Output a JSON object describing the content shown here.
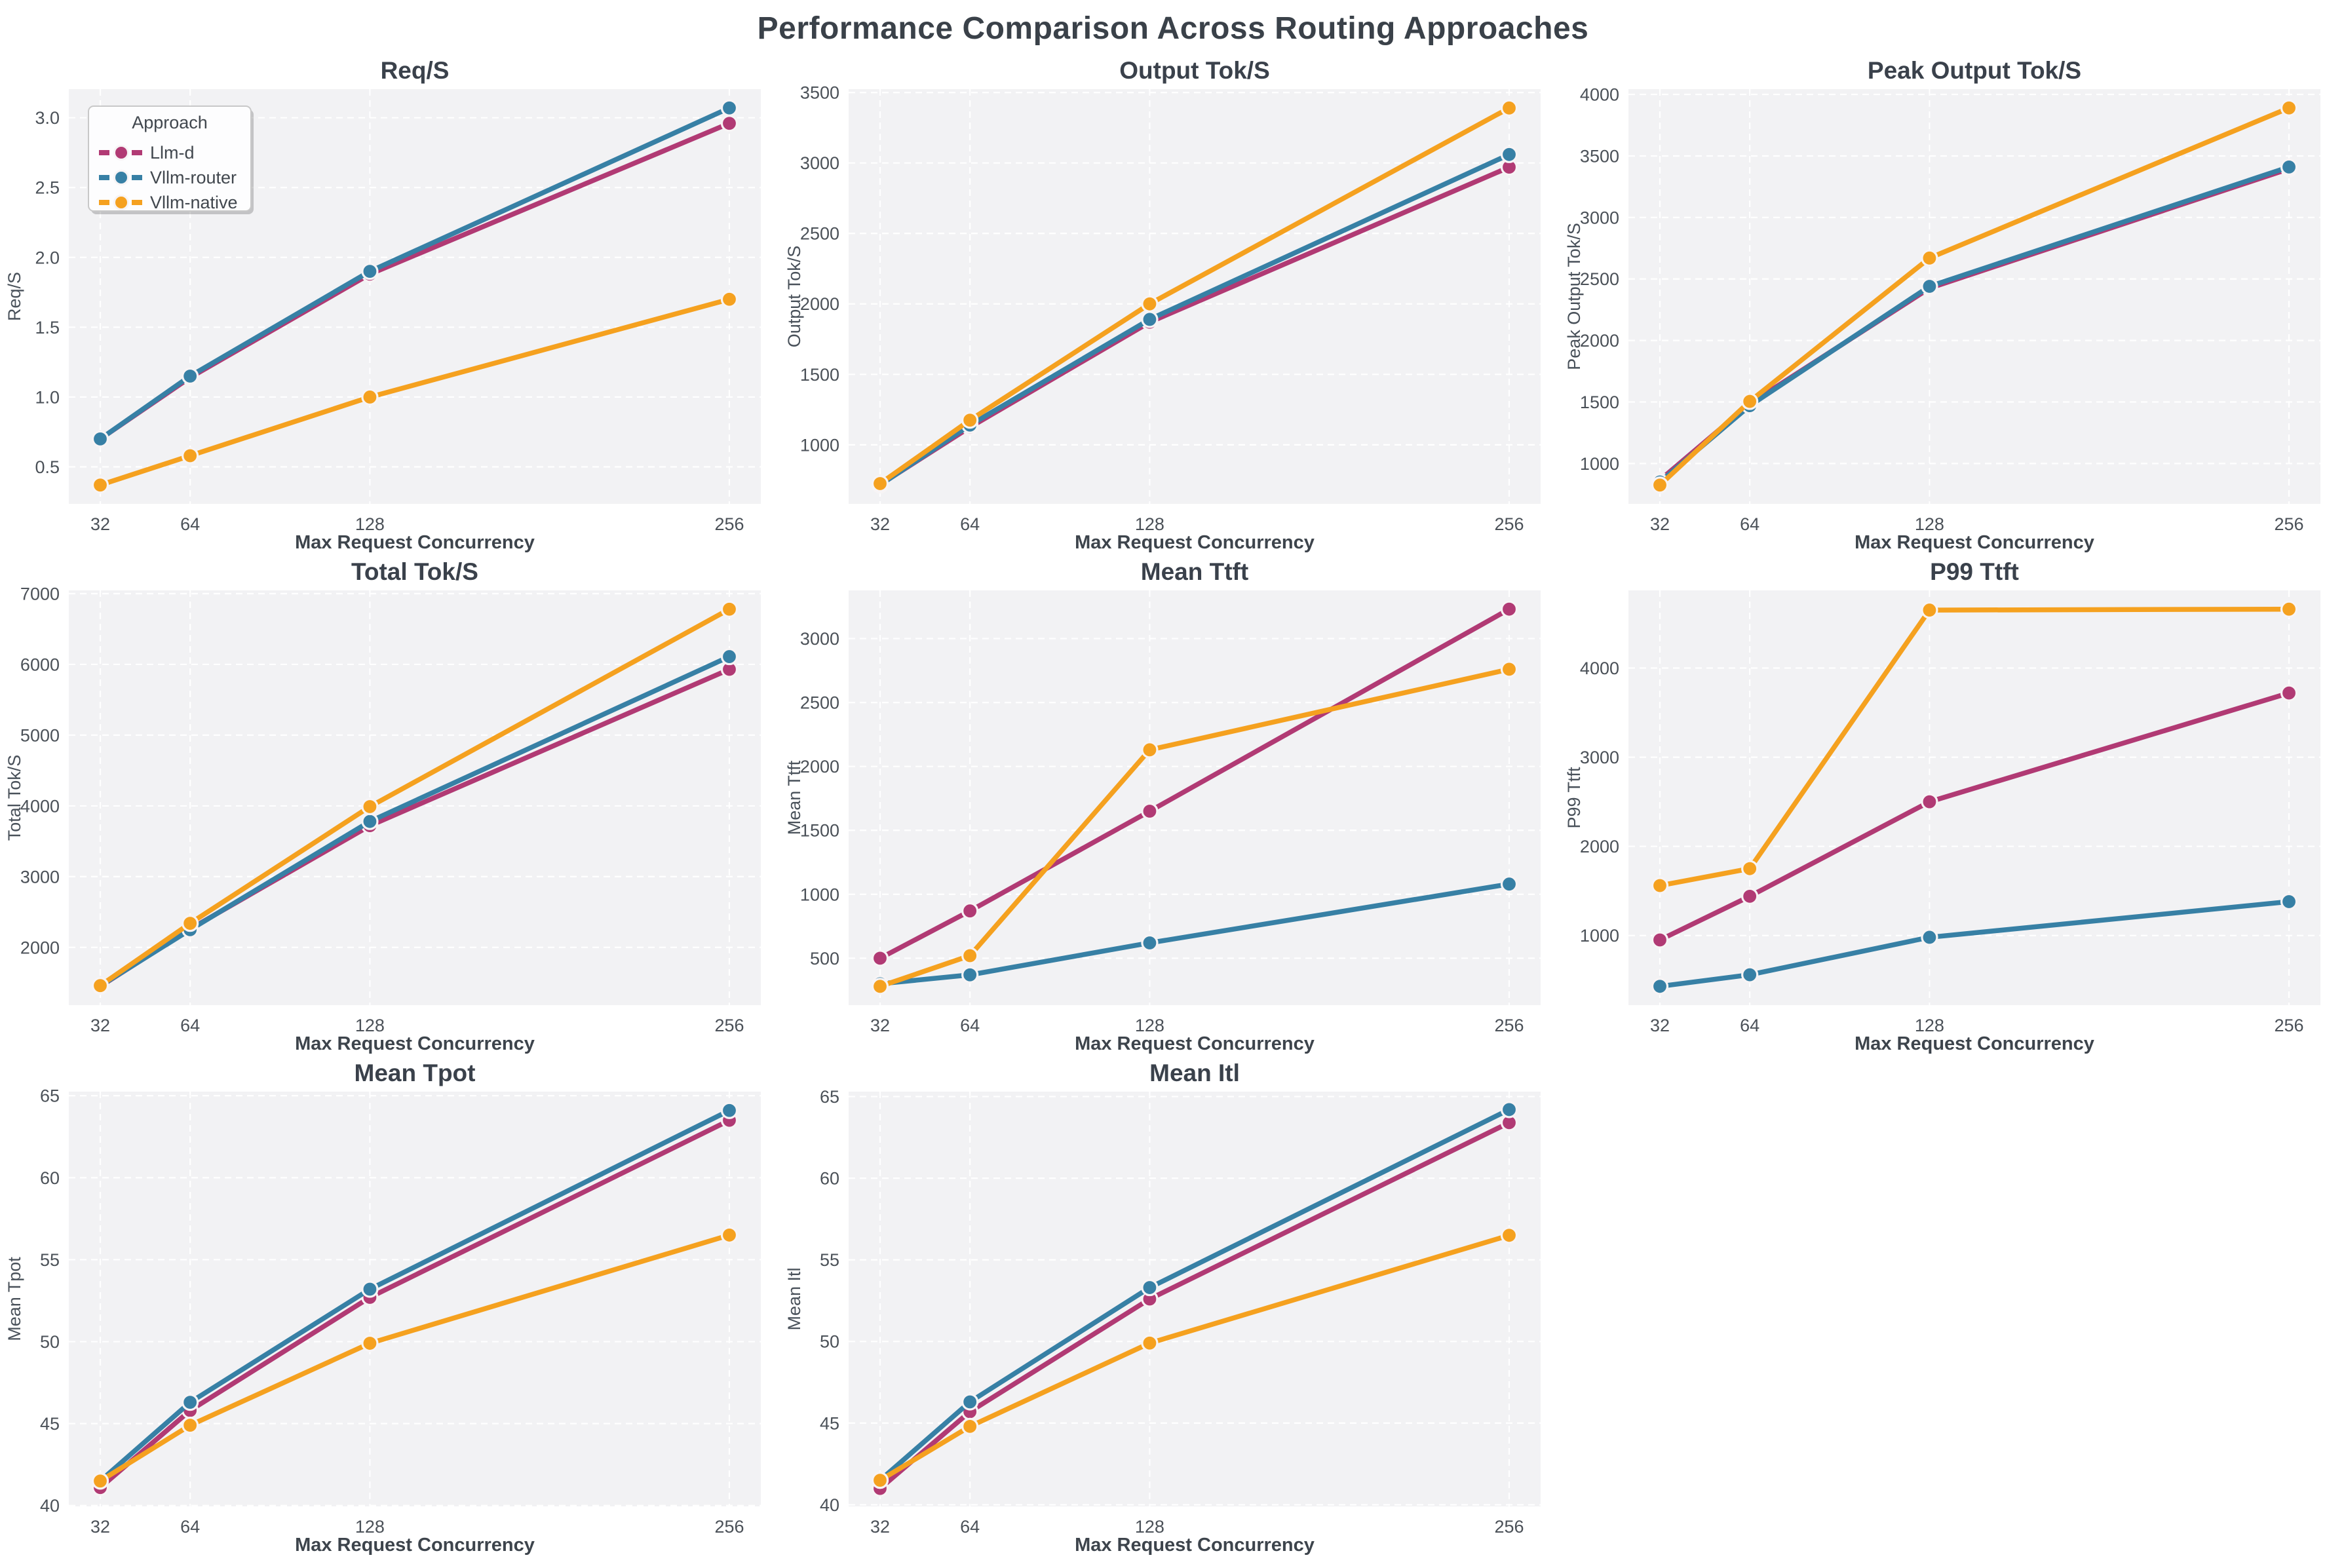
{
  "page_title": "Performance Comparison Across Routing Approaches",
  "x_axis": {
    "label": "Max Request Concurrency",
    "ticks": [
      32,
      64,
      128,
      256
    ],
    "tick_labels": [
      "32",
      "64",
      "128",
      "256"
    ],
    "xlim": [
      20.8,
      267.2
    ]
  },
  "legend": {
    "title": "Approach",
    "entries": [
      {
        "label": "Llm-d",
        "color": "#b13a74"
      },
      {
        "label": "Vllm-router",
        "color": "#3780a5"
      },
      {
        "label": "Vllm-native",
        "color": "#f5a11f"
      }
    ]
  },
  "style": {
    "panel_bg": "#f2f2f4",
    "grid_color": "#ffffff",
    "title_color": "#3a414b",
    "tick_color": "#4b5158",
    "axis_label_color": "#3d444c",
    "ylabel_color": "#49515a",
    "marker_edge": "#f7f4f5"
  },
  "chart_data": [
    {
      "type": "line",
      "id": "req-s",
      "title": "Req/S",
      "ylabel": "Req/S",
      "x": [
        32,
        64,
        128,
        256
      ],
      "xlabel": "Max Request Concurrency",
      "ylim": [
        0.235,
        3.205
      ],
      "yticks": [
        0.5,
        1.0,
        1.5,
        2.0,
        2.5,
        3.0
      ],
      "ytick_labels": [
        "0.5",
        "1.0",
        "1.5",
        "2.0",
        "2.5",
        "3.0"
      ],
      "legend": true,
      "series": [
        {
          "name": "Llm-d",
          "values": [
            0.7,
            1.14,
            1.88,
            2.96
          ]
        },
        {
          "name": "Vllm-router",
          "values": [
            0.7,
            1.15,
            1.9,
            3.07
          ]
        },
        {
          "name": "Vllm-native",
          "values": [
            0.37,
            0.58,
            1.0,
            1.7
          ]
        }
      ]
    },
    {
      "type": "line",
      "id": "output-tok-s",
      "title": "Output Tok/S",
      "ylabel": "Output Tok/S",
      "x": [
        32,
        64,
        128,
        256
      ],
      "xlabel": "Max Request Concurrency",
      "ylim": [
        581,
        3524
      ],
      "yticks": [
        1000,
        1500,
        2000,
        2500,
        3000,
        3500
      ],
      "ytick_labels": [
        "1000",
        "1500",
        "2000",
        "2500",
        "3000",
        "3500"
      ],
      "legend": false,
      "series": [
        {
          "name": "Llm-d",
          "values": [
            718,
            1125,
            1870,
            2970
          ]
        },
        {
          "name": "Vllm-router",
          "values": [
            715,
            1140,
            1890,
            3060
          ]
        },
        {
          "name": "Vllm-native",
          "values": [
            725,
            1175,
            2000,
            3390
          ]
        }
      ]
    },
    {
      "type": "line",
      "id": "peak-output-tok-s",
      "title": "Peak Output Tok/S",
      "ylabel": "Peak Output Tok/S",
      "x": [
        32,
        64,
        128,
        256
      ],
      "xlabel": "Max Request Concurrency",
      "ylim": [
        672,
        4043
      ],
      "yticks": [
        1000,
        1500,
        2000,
        2500,
        3000,
        3500,
        4000
      ],
      "ytick_labels": [
        "1000",
        "1500",
        "2000",
        "2500",
        "3000",
        "3500",
        "4000"
      ],
      "legend": false,
      "series": [
        {
          "name": "Llm-d",
          "values": [
            865,
            1485,
            2425,
            3395
          ]
        },
        {
          "name": "Vllm-router",
          "values": [
            850,
            1470,
            2440,
            3410
          ]
        },
        {
          "name": "Vllm-native",
          "values": [
            825,
            1505,
            2670,
            3890
          ]
        }
      ]
    },
    {
      "type": "line",
      "id": "total-tok-s",
      "title": "Total Tok/S",
      "ylabel": "Total Tok/S",
      "x": [
        32,
        64,
        128,
        256
      ],
      "xlabel": "Max Request Concurrency",
      "ylim": [
        1184,
        7046
      ],
      "yticks": [
        2000,
        3000,
        4000,
        5000,
        6000,
        7000
      ],
      "ytick_labels": [
        "2000",
        "3000",
        "4000",
        "5000",
        "6000",
        "7000"
      ],
      "legend": false,
      "series": [
        {
          "name": "Llm-d",
          "values": [
            1450,
            2260,
            3720,
            5930
          ]
        },
        {
          "name": "Vllm-router",
          "values": [
            1455,
            2250,
            3780,
            6110
          ]
        },
        {
          "name": "Vllm-native",
          "values": [
            1460,
            2340,
            3990,
            6780
          ]
        }
      ]
    },
    {
      "type": "line",
      "id": "mean-ttft",
      "title": "Mean Ttft",
      "ylabel": "Mean Ttft",
      "x": [
        32,
        64,
        128,
        256
      ],
      "xlabel": "Max Request Concurrency",
      "ylim": [
        133,
        3377
      ],
      "yticks": [
        500,
        1000,
        1500,
        2000,
        2500,
        3000
      ],
      "ytick_labels": [
        "500",
        "1000",
        "1500",
        "2000",
        "2500",
        "3000"
      ],
      "legend": false,
      "series": [
        {
          "name": "Llm-d",
          "values": [
            500,
            870,
            1650,
            3230
          ]
        },
        {
          "name": "Vllm-router",
          "values": [
            300,
            370,
            620,
            1080
          ]
        },
        {
          "name": "Vllm-native",
          "values": [
            280,
            520,
            2130,
            2760
          ]
        }
      ]
    },
    {
      "type": "line",
      "id": "p99-ttft",
      "title": "P99 Ttft",
      "ylabel": "P99 Ttft",
      "x": [
        32,
        64,
        128,
        256
      ],
      "xlabel": "Max Request Concurrency",
      "ylim": [
        219,
        4871
      ],
      "yticks": [
        1000,
        2000,
        3000,
        4000
      ],
      "ytick_labels": [
        "1000",
        "2000",
        "3000",
        "4000"
      ],
      "legend": false,
      "series": [
        {
          "name": "Llm-d",
          "values": [
            950,
            1440,
            2500,
            3720
          ]
        },
        {
          "name": "Vllm-router",
          "values": [
            430,
            560,
            980,
            1380
          ]
        },
        {
          "name": "Vllm-native",
          "values": [
            1560,
            1750,
            4650,
            4660
          ]
        }
      ]
    },
    {
      "type": "line",
      "id": "mean-tpot",
      "title": "Mean Tpot",
      "ylabel": "Mean Tpot",
      "x": [
        32,
        64,
        128,
        256
      ],
      "xlabel": "Max Request Concurrency",
      "ylim": [
        39.95,
        65.25
      ],
      "yticks": [
        40,
        45,
        50,
        55,
        60,
        65
      ],
      "ytick_labels": [
        "40",
        "45",
        "50",
        "55",
        "60",
        "65"
      ],
      "legend": false,
      "series": [
        {
          "name": "Llm-d",
          "values": [
            41.1,
            45.8,
            52.7,
            63.5
          ]
        },
        {
          "name": "Vllm-router",
          "values": [
            41.5,
            46.3,
            53.2,
            64.1
          ]
        },
        {
          "name": "Vllm-native",
          "values": [
            41.5,
            44.9,
            49.9,
            56.5
          ]
        }
      ]
    },
    {
      "type": "line",
      "id": "mean-itl",
      "title": "Mean Itl",
      "ylabel": "Mean Itl",
      "x": [
        32,
        64,
        128,
        256
      ],
      "xlabel": "Max Request Concurrency",
      "ylim": [
        39.9,
        65.3
      ],
      "yticks": [
        40,
        45,
        50,
        55,
        60,
        65
      ],
      "ytick_labels": [
        "40",
        "45",
        "50",
        "55",
        "60",
        "65"
      ],
      "legend": false,
      "series": [
        {
          "name": "Llm-d",
          "values": [
            41.0,
            45.7,
            52.6,
            63.4
          ]
        },
        {
          "name": "Vllm-router",
          "values": [
            41.5,
            46.3,
            53.3,
            64.2
          ]
        },
        {
          "name": "Vllm-native",
          "values": [
            41.5,
            44.8,
            49.9,
            56.5
          ]
        }
      ]
    }
  ]
}
